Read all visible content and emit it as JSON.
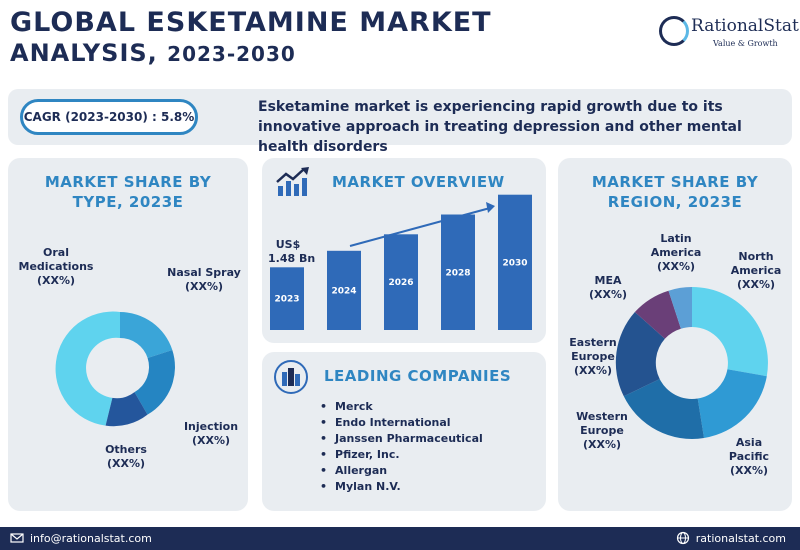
{
  "header": {
    "title_line1": "GLOBAL ESKETAMINE MARKET",
    "title_line2": "ANALYSIS,",
    "title_years": "2023-2030",
    "logo_name": "RationalStat",
    "logo_tagline": "Value & Growth"
  },
  "banner": {
    "cagr": "CAGR (2023-2030) : 5.8%",
    "text": "Esketamine market is experiencing rapid growth due to its innovative approach in treating depression and other mental health disorders"
  },
  "type_panel": {
    "title_line1": "MARKET SHARE BY",
    "title_line2": "TYPE, 2023E",
    "labels": {
      "oral_1": "Oral",
      "oral_2": "Medications",
      "oral_3": "(XX%)",
      "nasal_1": "Nasal Spray",
      "nasal_2": "(XX%)",
      "injection_1": "Injection",
      "injection_2": "(XX%)",
      "others_1": "Others",
      "others_2": "(XX%)"
    },
    "colors": [
      "#5fd3ee",
      "#3aa5d8",
      "#2585c2",
      "#24569c"
    ]
  },
  "overview_panel": {
    "title": "MARKET OVERVIEW",
    "value_line1": "US$",
    "value_line2": "1.48 Bn",
    "bars": [
      {
        "year": "2023",
        "level": 0.38
      },
      {
        "year": "2024",
        "level": 0.48
      },
      {
        "year": "2026",
        "level": 0.58
      },
      {
        "year": "2028",
        "level": 0.7
      },
      {
        "year": "2030",
        "level": 0.82
      }
    ],
    "bar_color": "#2f6ab8"
  },
  "companies_panel": {
    "title": "LEADING COMPANIES",
    "items": [
      "Merck",
      "Endo International",
      "Janssen Pharmaceutical",
      "Pfizer, Inc.",
      "Allergan",
      "Mylan N.V."
    ]
  },
  "region_panel": {
    "title_line1": "MARKET SHARE BY",
    "title_line2": "REGION, 2023E",
    "labels": {
      "latam_1": "Latin",
      "latam_2": "America",
      "latam_3": "(XX%)",
      "na_1": "North",
      "na_2": "America",
      "na_3": "(XX%)",
      "mea_1": "MEA",
      "mea_2": "(XX%)",
      "ee_1": "Eastern",
      "ee_2": "Europe",
      "ee_3": "(XX%)",
      "we_1": "Western",
      "we_2": "Europe",
      "we_3": "(XX%)",
      "ap_1": "Asia",
      "ap_2": "Pacific",
      "ap_3": "(XX%)"
    },
    "colors": [
      "#5fd3ee",
      "#2f9ad4",
      "#1f6ea8",
      "#245390",
      "#6a3f78",
      "#5c9fd6"
    ]
  },
  "footer": {
    "email": "info@rationalstat.com",
    "website": "rationalstat.com"
  }
}
